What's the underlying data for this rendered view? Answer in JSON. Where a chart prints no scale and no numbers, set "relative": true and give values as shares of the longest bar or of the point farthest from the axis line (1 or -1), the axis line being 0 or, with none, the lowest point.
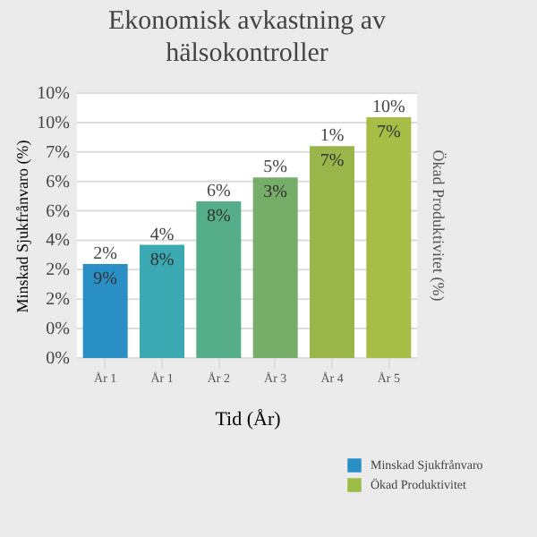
{
  "chart_data": {
    "type": "bar",
    "title": "Ekonomisk avkastning av hälsokontroller",
    "xlabel": "Tid (År)",
    "ylabel": "Minskad Sjukfrånvaro (%)",
    "y2label": "Ökad Produktivitet (%)",
    "categories": [
      "År 1",
      "År 1",
      "År 2",
      "År 3",
      "År 4",
      "År 5"
    ],
    "relative": true,
    "values": [
      0.39,
      0.47,
      0.65,
      0.75,
      0.88,
      1
    ],
    "colors": [
      "#2a8fc4",
      "#3aa9b1",
      "#55ad8a",
      "#76ad68",
      "#9ab64a",
      "#a7bd45"
    ],
    "series": [
      {
        "name": "Minskad Sjukfrånvaro",
        "color": "#2a8fc4",
        "values": [
          null,
          null,
          null,
          null,
          null,
          null
        ]
      },
      {
        "name": "Ökad Produktivitet",
        "color": "#9dbb47",
        "values": [
          null,
          null,
          null,
          null,
          null,
          null
        ]
      }
    ],
    "annotations": [
      "0%",
      "0%",
      "2%",
      "2%",
      "4%",
      "6%",
      "6%",
      "7%",
      "10%",
      "10%",
      "2%",
      "4%",
      "6%",
      "5%",
      "1%",
      "10%",
      "9%",
      "8%",
      "8%",
      "3%",
      "7%",
      "7%"
    ],
    "legend": "bottom right"
  }
}
